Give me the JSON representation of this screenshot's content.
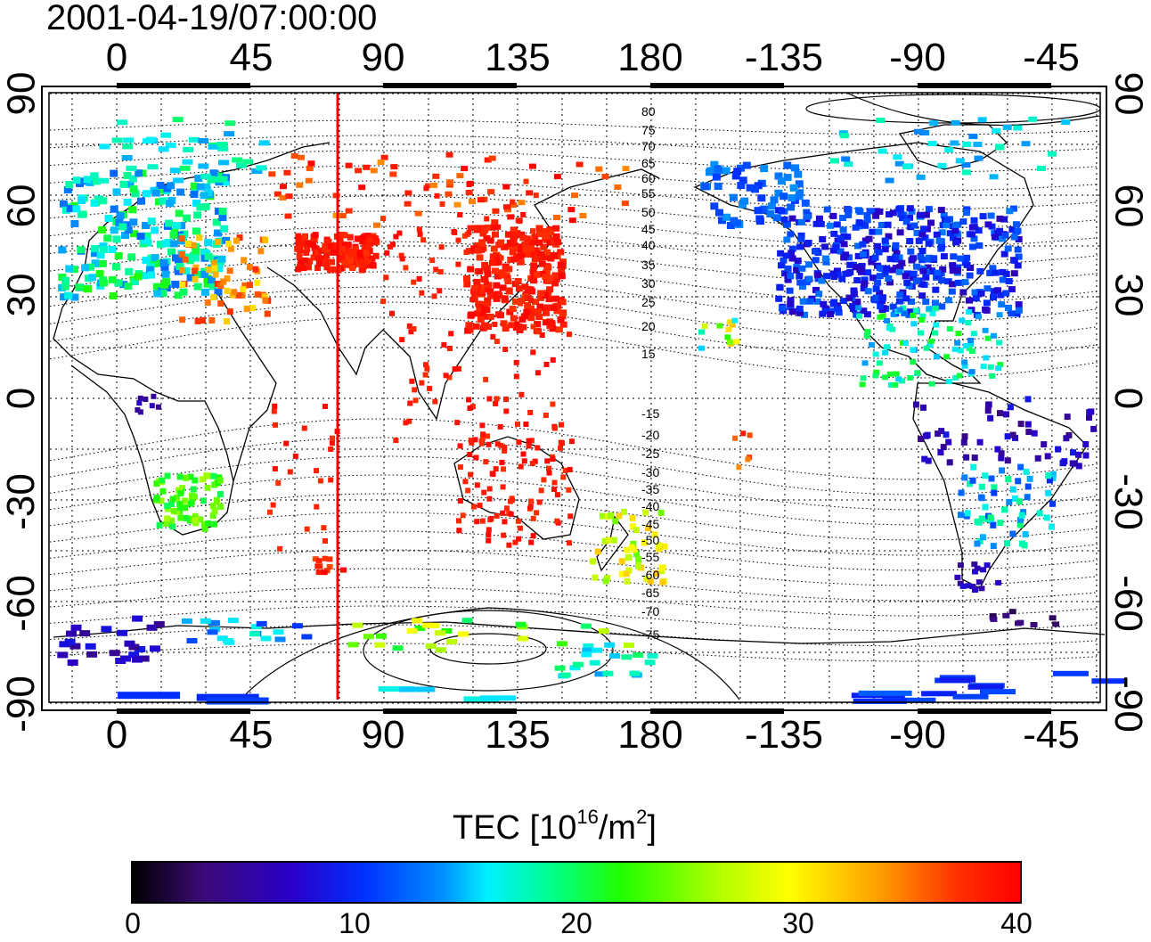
{
  "map": {
    "title": "2001-04-19/07:00:00",
    "lon_ticks_top": [
      "0",
      "45",
      "90",
      "135",
      "180",
      "-135",
      "-90",
      "-45"
    ],
    "lon_ticks_bottom": [
      "0",
      "45",
      "90",
      "135",
      "180",
      "-135",
      "-90",
      "-45"
    ],
    "lat_ticks_left": [
      "90",
      "60",
      "30",
      "0",
      "-30",
      "-60",
      "-90"
    ],
    "lat_ticks_right": [
      "90",
      "60",
      "30",
      "0",
      "-30",
      "-60",
      "-90"
    ],
    "contour_labels": [
      "80",
      "75",
      "70",
      "65",
      "60",
      "55",
      "50",
      "45",
      "40",
      "35",
      "30",
      "25",
      "20",
      "15",
      "-15",
      "-20",
      "-25",
      "-30",
      "-35",
      "-40",
      "-45",
      "-50",
      "-55",
      "-60",
      "-65",
      "-70",
      "-75"
    ],
    "marker_line_lon": 75,
    "colors": {
      "marker_line": "#ff0000",
      "frame": "#000000"
    }
  },
  "colorbar": {
    "title_main": "TEC  [10",
    "title_sup1": "16",
    "title_mid": "/m",
    "title_sup2": "2",
    "title_end": "]",
    "ticks": [
      "0",
      "10",
      "20",
      "30",
      "40"
    ],
    "range": [
      0,
      40
    ]
  }
}
